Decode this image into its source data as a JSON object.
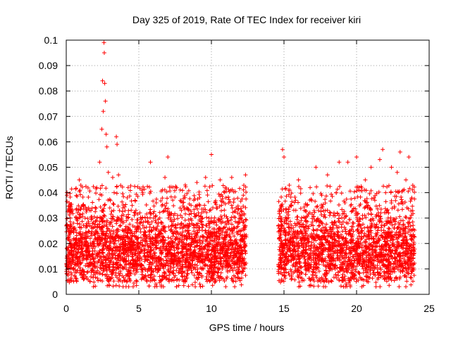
{
  "chart_data": {
    "type": "scatter",
    "title": "Day 325 of 2019, Rate Of TEC Index for receiver kiri",
    "xlabel": "GPS time / hours",
    "ylabel": "ROTI / TECUs",
    "xlim": [
      0,
      25
    ],
    "ylim": [
      0,
      0.1
    ],
    "xticks": [
      0,
      5,
      10,
      15,
      20,
      25
    ],
    "xtick_labels": [
      "0",
      "5",
      "10",
      "15",
      "20",
      "25"
    ],
    "yticks": [
      0,
      0.01,
      0.02,
      0.03,
      0.04,
      0.05,
      0.06,
      0.07,
      0.08,
      0.09,
      0.1
    ],
    "ytick_labels": [
      "0",
      "0.01",
      "0.02",
      "0.03",
      "0.04",
      "0.05",
      "0.06",
      "0.07",
      "0.08",
      "0.09",
      "0.1"
    ],
    "grid": true,
    "marker": "+",
    "color": "#ff0000",
    "series": [
      {
        "name": "ROTI",
        "x": [
          0.05,
          0.2,
          0.35,
          0.5,
          0.7,
          0.9,
          1.1,
          1.3,
          1.5,
          1.7,
          1.9,
          2.1,
          2.3,
          2.45,
          2.5,
          2.55,
          2.6,
          2.62,
          2.65,
          2.7,
          2.75,
          2.8,
          2.9,
          3.0,
          3.1,
          3.2,
          3.3,
          3.45,
          3.5,
          3.6,
          3.8,
          4.0,
          4.2,
          4.4,
          4.6,
          4.8,
          5.0,
          5.2,
          5.4,
          5.6,
          5.8,
          6.0,
          6.2,
          6.4,
          6.6,
          6.8,
          7.0,
          7.2,
          7.4,
          7.6,
          7.8,
          8.0,
          8.2,
          8.4,
          8.6,
          8.8,
          9.0,
          9.2,
          9.4,
          9.6,
          9.8,
          10.0,
          10.2,
          10.4,
          10.6,
          10.8,
          11.0,
          11.2,
          11.4,
          11.6,
          11.8,
          12.0,
          12.2,
          12.35,
          14.7,
          14.8,
          14.9,
          15.0,
          15.2,
          15.4,
          15.6,
          15.8,
          16.0,
          16.2,
          16.4,
          16.6,
          16.8,
          17.0,
          17.2,
          17.4,
          17.6,
          17.8,
          18.0,
          18.2,
          18.4,
          18.6,
          18.8,
          19.0,
          19.2,
          19.4,
          19.6,
          19.8,
          20.0,
          20.2,
          20.4,
          20.6,
          20.8,
          21.0,
          21.2,
          21.4,
          21.6,
          21.8,
          22.0,
          22.2,
          22.4,
          22.6,
          22.8,
          23.0,
          23.2,
          23.4,
          23.6,
          23.8
        ],
        "y": [
          0.018,
          0.036,
          0.012,
          0.028,
          0.022,
          0.045,
          0.008,
          0.03,
          0.015,
          0.033,
          0.02,
          0.042,
          0.052,
          0.065,
          0.084,
          0.072,
          0.099,
          0.095,
          0.083,
          0.076,
          0.063,
          0.058,
          0.048,
          0.034,
          0.025,
          0.046,
          0.04,
          0.062,
          0.059,
          0.047,
          0.03,
          0.018,
          0.038,
          0.024,
          0.012,
          0.033,
          0.02,
          0.041,
          0.015,
          0.03,
          0.052,
          0.022,
          0.036,
          0.01,
          0.028,
          0.046,
          0.054,
          0.019,
          0.031,
          0.042,
          0.014,
          0.026,
          0.043,
          0.011,
          0.035,
          0.022,
          0.044,
          0.017,
          0.03,
          0.046,
          0.025,
          0.055,
          0.013,
          0.034,
          0.045,
          0.02,
          0.038,
          0.028,
          0.046,
          0.012,
          0.032,
          0.021,
          0.039,
          0.047,
          0.025,
          0.035,
          0.057,
          0.054,
          0.03,
          0.041,
          0.016,
          0.037,
          0.045,
          0.02,
          0.033,
          0.012,
          0.042,
          0.027,
          0.05,
          0.018,
          0.039,
          0.024,
          0.047,
          0.014,
          0.031,
          0.04,
          0.052,
          0.022,
          0.036,
          0.052,
          0.017,
          0.028,
          0.054,
          0.03,
          0.011,
          0.045,
          0.035,
          0.05,
          0.038,
          0.02,
          0.053,
          0.057,
          0.04,
          0.026,
          0.05,
          0.034,
          0.048,
          0.056,
          0.029,
          0.045,
          0.054,
          0.038
        ]
      }
    ],
    "dense_band": {
      "segments": [
        [
          0,
          12.4
        ],
        [
          14.6,
          24.0
        ]
      ],
      "typical_range": [
        0.005,
        0.035
      ],
      "typical_median": 0.017
    }
  }
}
